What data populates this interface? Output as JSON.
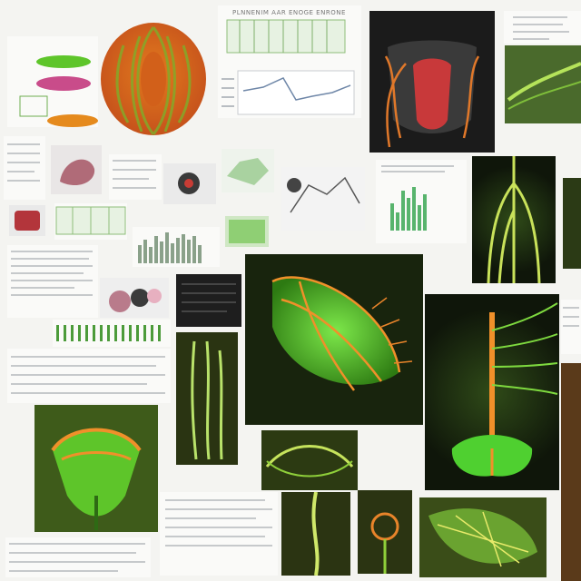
{
  "header_text": "PLNNENIM  AAR  ENOGE  ENRONE",
  "colors": {
    "background": "#f4f4f1",
    "orange": "#e2701f",
    "green": "#5ec52a",
    "red": "#c73c35",
    "dark": "#161616"
  },
  "icons": [
    "brain-illustration",
    "venus-flytrap-illustration",
    "vascular-root-illustration"
  ]
}
